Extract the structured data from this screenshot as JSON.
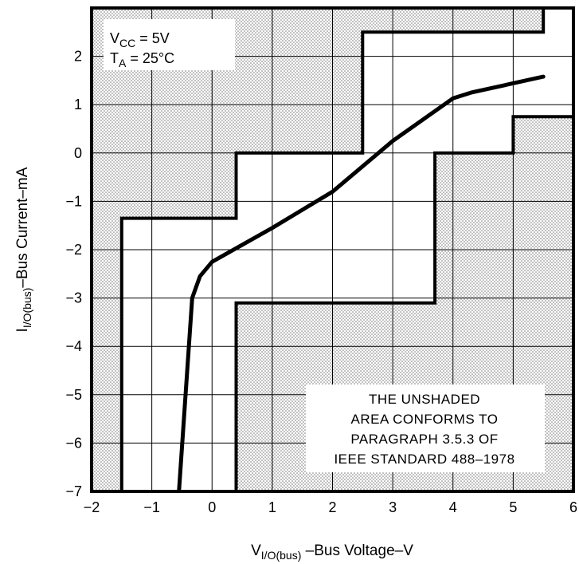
{
  "chart_data": {
    "type": "line",
    "title": "",
    "xlabel": {
      "prefix": "V",
      "sub": "I/O(bus)",
      "suffix": " –Bus Voltage–V"
    },
    "ylabel": {
      "prefix": "I",
      "sub": "I/O(bus)",
      "suffix": "–Bus Current–mA"
    },
    "xlim": [
      -2,
      6
    ],
    "ylim": [
      -7,
      3
    ],
    "x_ticks": [
      -2,
      -1,
      0,
      1,
      2,
      3,
      4,
      5,
      6
    ],
    "x_tick_labels": [
      "−2",
      "−1",
      "0",
      "1",
      "2",
      "3",
      "4",
      "5",
      "6"
    ],
    "y_ticks": [
      -7,
      -6,
      -5,
      -4,
      -3,
      -2,
      -1,
      0,
      1,
      2
    ],
    "y_tick_labels": [
      "−7",
      "−6",
      "−5",
      "−4",
      "−3",
      "−2",
      "−1",
      "0",
      "1",
      "2"
    ],
    "grid": true,
    "conditions": [
      {
        "prefix": "V",
        "sub": "CC",
        "suffix": " = 5V"
      },
      {
        "prefix": "T",
        "sub": "A",
        "suffix": " = 25°C"
      }
    ],
    "note": [
      "THE UNSHADED",
      "AREA CONFORMS TO",
      "PARAGRAPH 3.5.3 OF",
      "IEEE STANDARD 488–1978"
    ],
    "curve": {
      "x": [
        -0.55,
        -0.33,
        -0.2,
        0.0,
        0.5,
        1.0,
        2.0,
        3.0,
        4.0,
        4.3,
        5.5
      ],
      "y": [
        -7.0,
        -3.0,
        -2.55,
        -2.25,
        -1.9,
        -1.55,
        -0.8,
        0.25,
        1.13,
        1.25,
        1.58
      ]
    },
    "boundary_upper": {
      "x": [
        -1.5,
        -1.5,
        0.4,
        0.4,
        2.5,
        2.5,
        5.5,
        5.5
      ],
      "y": [
        -7.0,
        -1.35,
        -1.35,
        0.0,
        0.0,
        2.5,
        2.5,
        3.0
      ]
    },
    "boundary_lower": {
      "x": [
        0.4,
        0.4,
        3.7,
        3.7,
        5.0,
        5.0,
        6.0
      ],
      "y": [
        -7.0,
        -3.1,
        -3.1,
        0.0,
        0.0,
        0.75,
        0.75
      ]
    }
  }
}
